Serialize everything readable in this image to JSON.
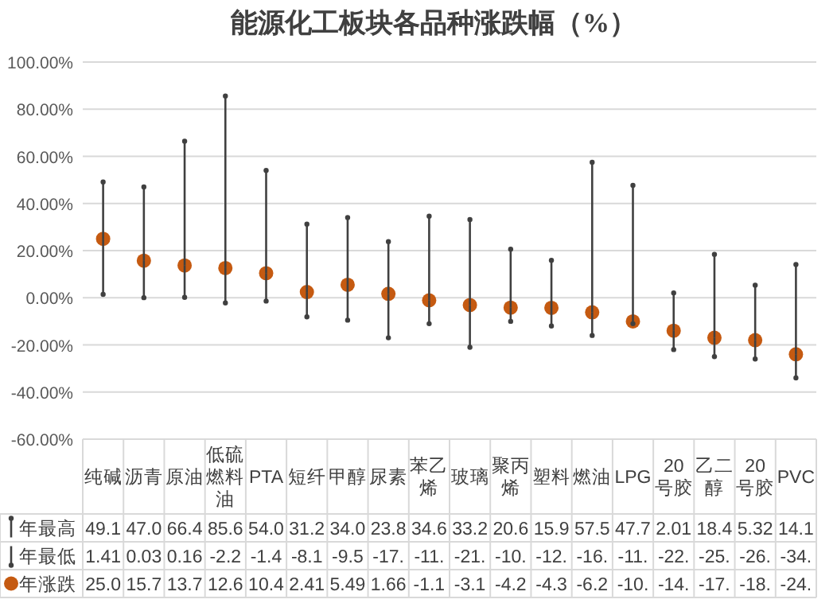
{
  "chart_data": {
    "type": "scatter",
    "title": "能源化工板块各品种涨跌幅（%）",
    "categories": [
      "纯碱",
      "沥青",
      "原油",
      "低硫燃料油",
      "PTA",
      "短纤",
      "甲醇",
      "尿素",
      "苯乙烯",
      "玻璃",
      "聚丙烯",
      "塑料",
      "燃油",
      "LPG",
      "20号胶",
      "乙二醇",
      "20号胶",
      "PVC"
    ],
    "ylim": [
      -60,
      100
    ],
    "yticks": [
      {
        "value": -60,
        "label": "-60.00%"
      },
      {
        "value": -40,
        "label": "-40.00%"
      },
      {
        "value": -20,
        "label": "-20.00%"
      },
      {
        "value": 0,
        "label": "0.00%"
      },
      {
        "value": 20,
        "label": "20.00%"
      },
      {
        "value": 40,
        "label": "40.00%"
      },
      {
        "value": 60,
        "label": "60.00%"
      },
      {
        "value": 80,
        "label": "80.00%"
      },
      {
        "value": 100,
        "label": "100.00%"
      }
    ],
    "grid": "y",
    "legend": "bottom",
    "series": [
      {
        "name": "年最高",
        "color": "#404040",
        "marker": "circle",
        "line_style": "solid",
        "values": [
          49.1,
          47.0,
          66.4,
          85.6,
          54.0,
          31.2,
          34.0,
          23.8,
          34.6,
          33.2,
          20.6,
          15.9,
          57.5,
          47.7,
          2.01,
          18.4,
          5.32,
          14.1
        ],
        "value_labels": [
          "49.1",
          "47.0",
          "66.4",
          "85.6",
          "54.0",
          "31.2",
          "34.0",
          "23.8",
          "34.6",
          "33.2",
          "20.6",
          "15.9",
          "57.5",
          "47.7",
          "2.01",
          "18.4",
          "5.32",
          "14.1"
        ]
      },
      {
        "name": "年最低",
        "color": "#404040",
        "marker": "circle",
        "line_style": "solid",
        "values": [
          1.41,
          0.03,
          0.16,
          -2.2,
          -1.4,
          -8.1,
          -9.5,
          -17,
          -11,
          -21,
          -10,
          -12,
          -16,
          -11,
          -22,
          -25,
          -26,
          -34
        ],
        "value_labels": [
          "1.41",
          "0.03",
          "0.16",
          "-2.2",
          "-1.4",
          "-8.1",
          "-9.5",
          "-17.",
          "-11.",
          "-21.",
          "-10.",
          "-12.",
          "-16.",
          "-11.",
          "-22.",
          "-25.",
          "-26.",
          "-34."
        ]
      },
      {
        "name": "年涨跌",
        "color": "#c55a11",
        "marker": "circle",
        "values": [
          25.0,
          15.7,
          13.7,
          12.6,
          10.4,
          2.41,
          5.49,
          1.66,
          -1.1,
          -3.1,
          -4.2,
          -4.3,
          -6.2,
          -10,
          -14,
          -17,
          -18,
          -24
        ],
        "value_labels": [
          "25.0",
          "15.7",
          "13.7",
          "12.6",
          "10.4",
          "2.41",
          "5.49",
          "1.66",
          "-1.1",
          "-3.1",
          "-4.2",
          "-4.3",
          "-6.2",
          "-10.",
          "-14.",
          "-17.",
          "-18.",
          "-24."
        ]
      }
    ]
  }
}
